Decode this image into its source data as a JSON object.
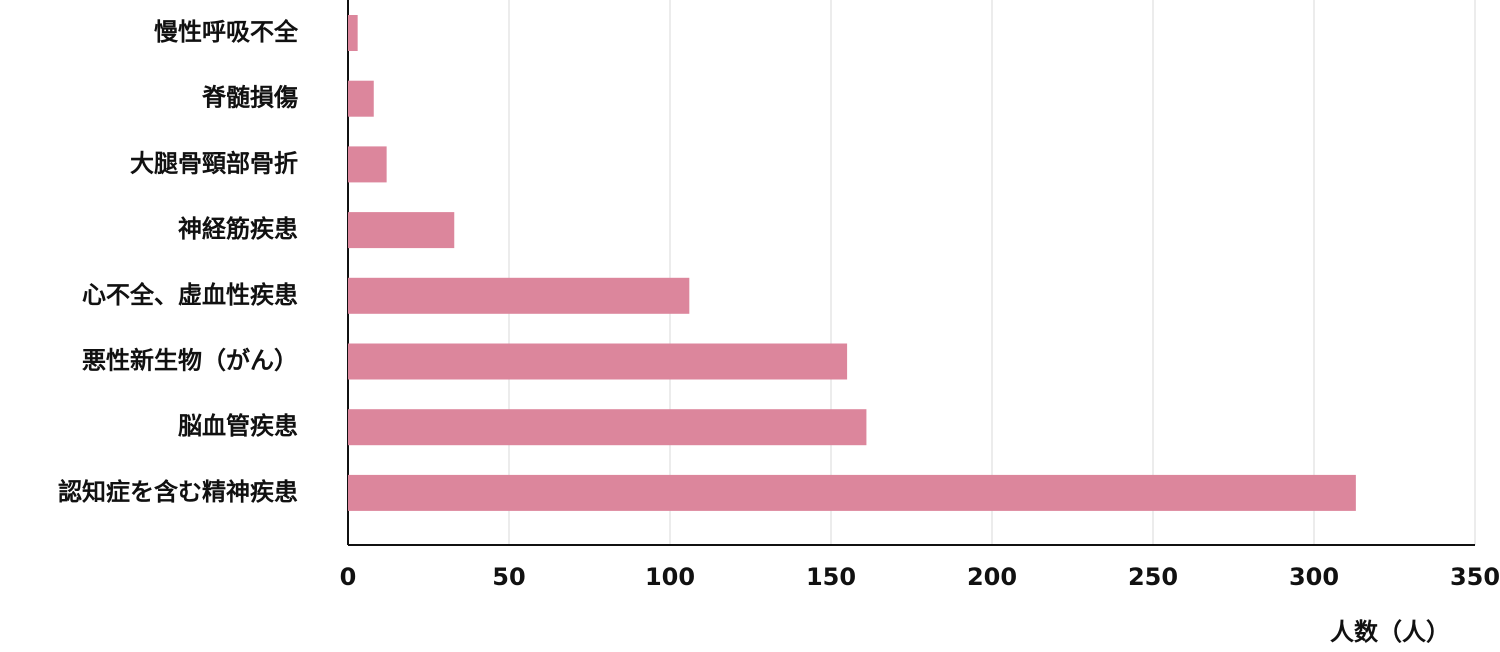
{
  "chart_data": {
    "type": "bar",
    "orientation": "horizontal",
    "x_label": "人数（人）",
    "categories": [
      "慢性呼吸不全",
      "脊髄損傷",
      "大腿骨頸部骨折",
      "神経筋疾患",
      "心不全、虚血性疾患",
      "悪性新生物（がん）",
      "脳血管疾患",
      "認知症を含む精神疾患"
    ],
    "values": [
      3,
      8,
      12,
      33,
      106,
      155,
      161,
      313
    ],
    "color": "#dc869c",
    "xlim": [
      0,
      350
    ],
    "xticks": [
      0,
      50,
      100,
      150,
      200,
      250,
      300,
      350
    ],
    "grid": true
  }
}
